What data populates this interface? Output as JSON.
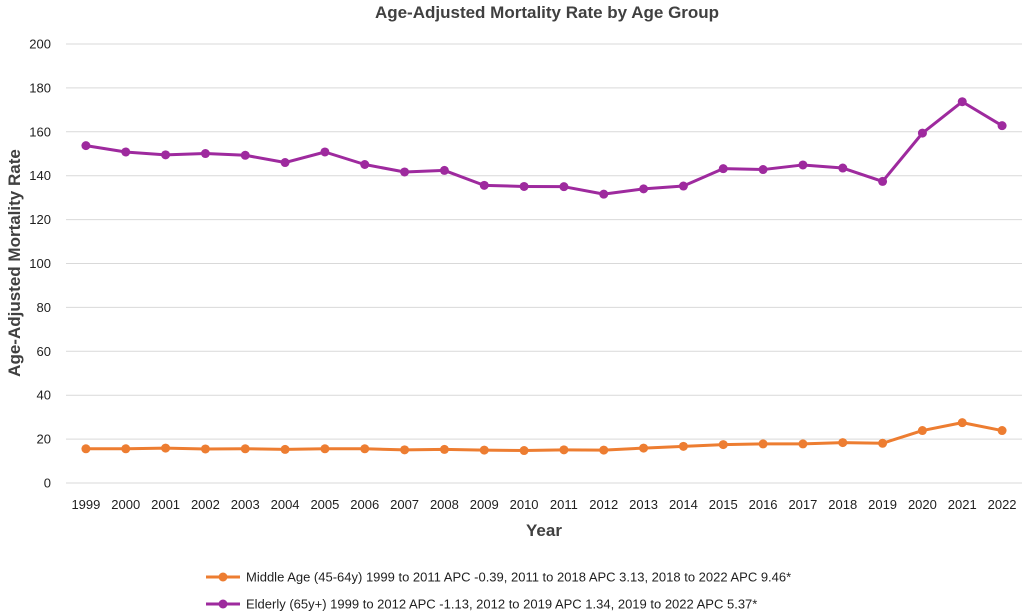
{
  "chart_data": {
    "type": "line",
    "title": "Age-Adjusted Mortality Rate by Age Group",
    "xlabel": "Year",
    "ylabel": "Age-Adjusted Mortality Rate",
    "ylim": [
      0,
      200
    ],
    "yticks": [
      "0",
      "20",
      "40",
      "60",
      "80",
      "100",
      "120",
      "140",
      "160",
      "180",
      "200"
    ],
    "grid": true,
    "legend_position": "bottom",
    "categories": [
      "1999",
      "2000",
      "2001",
      "2002",
      "2003",
      "2004",
      "2005",
      "2006",
      "2007",
      "2008",
      "2009",
      "2010",
      "2011",
      "2012",
      "2013",
      "2014",
      "2015",
      "2016",
      "2017",
      "2018",
      "2019",
      "2020",
      "2021",
      "2022"
    ],
    "series": [
      {
        "name": "Middle Age (45-64y) 1999 to 2011 APC -0.39, 2011 to 2018 APC 3.13, 2018 to 2022 APC 9.46*",
        "color": "#ed7d31",
        "values": [
          15.6,
          15.6,
          15.9,
          15.5,
          15.6,
          15.3,
          15.6,
          15.6,
          15.1,
          15.3,
          15.0,
          14.8,
          15.1,
          15.0,
          15.9,
          16.7,
          17.5,
          17.8,
          17.8,
          18.4,
          18.1,
          23.9,
          27.5,
          23.9
        ]
      },
      {
        "name": "Elderly (65y+) 1999 to 2012 APC -1.13, 2012 to 2019 APC 1.34, 2019 to 2022 APC 5.37*",
        "color": "#9e2a9e",
        "values": [
          153.7,
          150.8,
          149.5,
          150.1,
          149.3,
          146.0,
          150.8,
          145.1,
          141.7,
          142.4,
          135.6,
          135.1,
          135.0,
          131.6,
          134.0,
          135.3,
          143.2,
          142.8,
          144.9,
          143.5,
          137.4,
          159.4,
          173.7,
          162.8
        ]
      }
    ]
  }
}
